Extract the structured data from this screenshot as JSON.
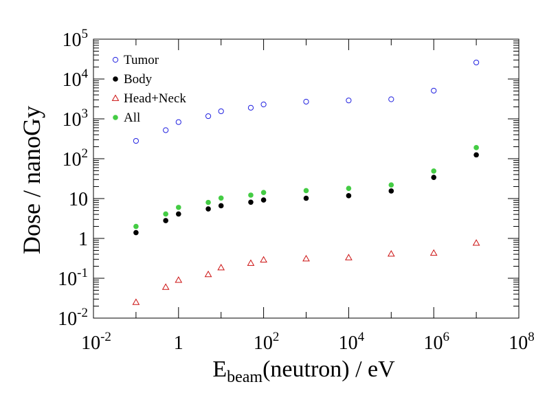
{
  "chart_data": {
    "type": "scatter",
    "xscale": "log",
    "yscale": "log",
    "xlim": [
      0.01,
      100000000
    ],
    "ylim": [
      0.01,
      100000
    ],
    "xlabel": {
      "main": "E",
      "sub": "beam",
      "rest": "(neutron) / eV"
    },
    "ylabel": "Dose / nanoGy",
    "x_ticks": [
      {
        "value": 0.01,
        "base": "10",
        "exp": "-2"
      },
      {
        "value": 1,
        "base": "1",
        "exp": ""
      },
      {
        "value": 100,
        "base": "10",
        "exp": "2"
      },
      {
        "value": 10000,
        "base": "10",
        "exp": "4"
      },
      {
        "value": 1000000,
        "base": "10",
        "exp": "6"
      },
      {
        "value": 100000000,
        "base": "10",
        "exp": "8"
      }
    ],
    "y_ticks": [
      {
        "value": 0.01,
        "base": "10",
        "exp": "-2"
      },
      {
        "value": 0.1,
        "base": "10",
        "exp": "-1"
      },
      {
        "value": 1,
        "base": "1",
        "exp": ""
      },
      {
        "value": 10,
        "base": "10",
        "exp": ""
      },
      {
        "value": 100,
        "base": "10",
        "exp": "2"
      },
      {
        "value": 1000,
        "base": "10",
        "exp": "3"
      },
      {
        "value": 10000,
        "base": "10",
        "exp": "4"
      },
      {
        "value": 100000,
        "base": "10",
        "exp": "5"
      }
    ],
    "legend_position": "top-left",
    "x": [
      0.1,
      0.5,
      1,
      5,
      10,
      50,
      100,
      1000,
      10000,
      100000,
      1000000,
      10000000
    ],
    "series": [
      {
        "name": "Tumor",
        "marker": "open-circle",
        "color": "#2020e0",
        "values": [
          280,
          520,
          830,
          1170,
          1550,
          1900,
          2300,
          2700,
          2900,
          3100,
          5100,
          26000
        ]
      },
      {
        "name": "Body",
        "marker": "filled-circle",
        "color": "#000000",
        "values": [
          1.4,
          2.8,
          4.1,
          5.5,
          6.6,
          8.1,
          9.2,
          10.2,
          11.8,
          15.5,
          34,
          125
        ]
      },
      {
        "name": "Head+Neck",
        "marker": "open-triangle",
        "color": "#cc1111",
        "values": [
          0.025,
          0.06,
          0.09,
          0.125,
          0.185,
          0.24,
          0.29,
          0.31,
          0.33,
          0.41,
          0.43,
          0.77
        ]
      },
      {
        "name": "All",
        "marker": "filled-circle",
        "color": "#44cc44",
        "values": [
          2.0,
          4.1,
          6.0,
          8.0,
          10.3,
          12.2,
          14.2,
          15.8,
          18.0,
          22.0,
          49,
          190
        ]
      }
    ]
  }
}
